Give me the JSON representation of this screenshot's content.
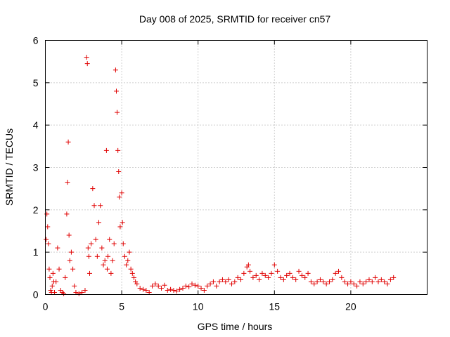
{
  "chart_data": {
    "type": "scatter",
    "title": "Day 008 of 2025, SRMTID for receiver cn57",
    "xlabel": "GPS time / hours",
    "ylabel": "SRMTID / TECUs",
    "xlim": [
      0,
      25
    ],
    "ylim": [
      0,
      6
    ],
    "xticks": [
      0,
      5,
      10,
      15,
      20
    ],
    "yticks": [
      0,
      1,
      2,
      3,
      4,
      5,
      6
    ],
    "grid": true,
    "marker": "plus",
    "color": "#e00000",
    "series": [
      {
        "name": "SRMTID",
        "x": [
          0.05,
          0.1,
          0.15,
          0.2,
          0.25,
          0.3,
          0.35,
          0.4,
          0.45,
          0.5,
          0.55,
          0.6,
          0.7,
          0.8,
          0.9,
          1.0,
          1.1,
          1.2,
          1.3,
          1.4,
          1.45,
          1.5,
          1.55,
          1.6,
          1.7,
          1.8,
          1.9,
          2.0,
          2.2,
          2.4,
          2.6,
          2.7,
          2.75,
          2.8,
          2.85,
          2.9,
          3.0,
          3.1,
          3.2,
          3.3,
          3.4,
          3.5,
          3.6,
          3.7,
          3.8,
          3.9,
          4.0,
          4.05,
          4.1,
          4.2,
          4.3,
          4.4,
          4.5,
          4.6,
          4.65,
          4.7,
          4.75,
          4.8,
          4.85,
          4.9,
          5.0,
          5.05,
          5.1,
          5.2,
          5.3,
          5.4,
          5.5,
          5.6,
          5.7,
          5.8,
          5.9,
          6.0,
          6.2,
          6.4,
          6.6,
          6.8,
          7.0,
          7.2,
          7.4,
          7.6,
          7.8,
          8.0,
          8.2,
          8.4,
          8.6,
          8.8,
          9.0,
          9.2,
          9.4,
          9.6,
          9.8,
          10.0,
          10.2,
          10.4,
          10.6,
          10.8,
          11.0,
          11.2,
          11.4,
          11.6,
          11.8,
          12.0,
          12.2,
          12.4,
          12.6,
          12.8,
          13.0,
          13.2,
          13.3,
          13.4,
          13.6,
          13.8,
          14.0,
          14.2,
          14.4,
          14.6,
          14.8,
          15.0,
          15.2,
          15.4,
          15.6,
          15.8,
          16.0,
          16.2,
          16.4,
          16.6,
          16.8,
          17.0,
          17.2,
          17.4,
          17.6,
          17.8,
          18.0,
          18.2,
          18.4,
          18.6,
          18.8,
          19.0,
          19.2,
          19.4,
          19.6,
          19.8,
          20.0,
          20.2,
          20.4,
          20.6,
          20.8,
          21.0,
          21.2,
          21.4,
          21.6,
          21.8,
          22.0,
          22.2,
          22.4,
          22.6,
          22.8
        ],
        "y": [
          1.3,
          1.9,
          1.6,
          1.2,
          0.6,
          0.4,
          0.1,
          0.05,
          0.2,
          0.5,
          0.3,
          0.05,
          0.3,
          1.1,
          0.6,
          0.1,
          0.05,
          0.02,
          0.4,
          1.9,
          2.65,
          3.6,
          1.4,
          0.8,
          1.0,
          0.6,
          0.2,
          0.05,
          0.02,
          0.05,
          0.1,
          5.6,
          5.45,
          1.1,
          0.9,
          0.5,
          1.2,
          2.5,
          2.1,
          1.3,
          0.9,
          1.7,
          2.1,
          1.1,
          0.7,
          0.8,
          3.4,
          0.6,
          0.9,
          1.3,
          0.5,
          0.8,
          1.2,
          5.3,
          4.8,
          4.3,
          3.4,
          2.9,
          2.3,
          1.6,
          2.4,
          1.7,
          1.2,
          0.9,
          0.7,
          0.8,
          1.0,
          0.6,
          0.5,
          0.4,
          0.3,
          0.25,
          0.15,
          0.12,
          0.1,
          0.05,
          0.2,
          0.25,
          0.2,
          0.15,
          0.22,
          0.1,
          0.12,
          0.1,
          0.08,
          0.12,
          0.15,
          0.2,
          0.18,
          0.25,
          0.22,
          0.2,
          0.15,
          0.1,
          0.2,
          0.25,
          0.3,
          0.2,
          0.3,
          0.35,
          0.3,
          0.35,
          0.25,
          0.3,
          0.4,
          0.35,
          0.5,
          0.65,
          0.7,
          0.55,
          0.4,
          0.45,
          0.35,
          0.5,
          0.45,
          0.4,
          0.5,
          0.7,
          0.55,
          0.4,
          0.35,
          0.45,
          0.5,
          0.4,
          0.35,
          0.55,
          0.45,
          0.4,
          0.5,
          0.3,
          0.25,
          0.3,
          0.35,
          0.3,
          0.25,
          0.3,
          0.35,
          0.5,
          0.55,
          0.4,
          0.3,
          0.25,
          0.3,
          0.25,
          0.2,
          0.3,
          0.25,
          0.3,
          0.35,
          0.3,
          0.4,
          0.3,
          0.35,
          0.3,
          0.25,
          0.35,
          0.4
        ]
      }
    ]
  }
}
